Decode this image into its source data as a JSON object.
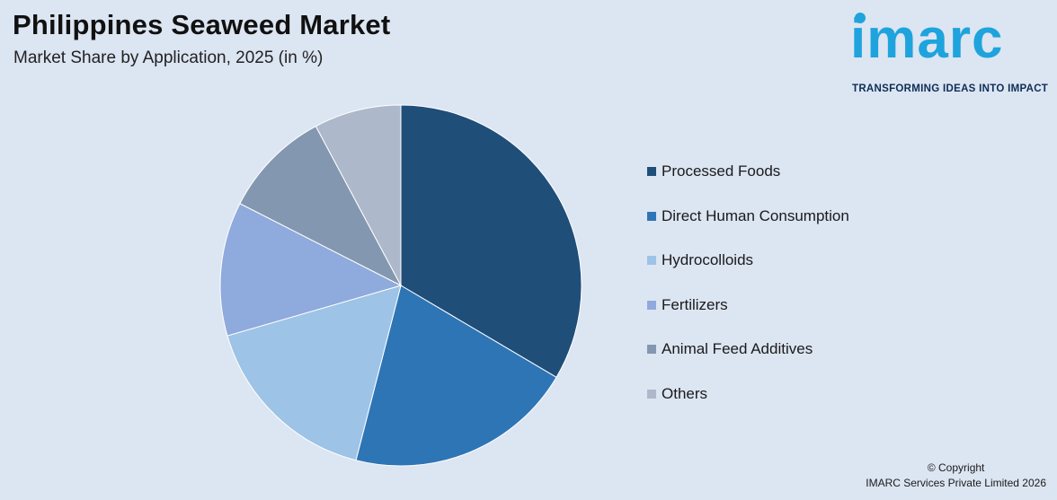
{
  "header": {
    "title": "Philippines Seaweed Market",
    "subtitle": "Market Share by Application, 2025 (in %)"
  },
  "logo": {
    "wordmark": "imarc",
    "tagline": "TRANSFORMING IDEAS INTO IMPACT",
    "color": "#1fa3dd"
  },
  "chart_data": {
    "type": "pie",
    "title": "Philippines Seaweed Market",
    "subtitle": "Market Share by Application, 2025 (in %)",
    "start_angle_deg": 0,
    "direction": "clockwise",
    "legend_position": "right",
    "slices": [
      {
        "label": "Processed Foods",
        "value": 33.5,
        "color": "#1f4e79"
      },
      {
        "label": "Direct Human Consumption",
        "value": 20.5,
        "color": "#2e75b6"
      },
      {
        "label": "Hydrocolloids",
        "value": 16.5,
        "color": "#9dc3e6"
      },
      {
        "label": "Fertilizers",
        "value": 12.0,
        "color": "#8faadc"
      },
      {
        "label": "Animal Feed Additives",
        "value": 9.7,
        "color": "#8497b0"
      },
      {
        "label": "Others",
        "value": 7.8,
        "color": "#adb9ca"
      }
    ]
  },
  "footer": {
    "copyright_line1": "© Copyright",
    "copyright_line2": "IMARC Services Private Limited 2026"
  }
}
